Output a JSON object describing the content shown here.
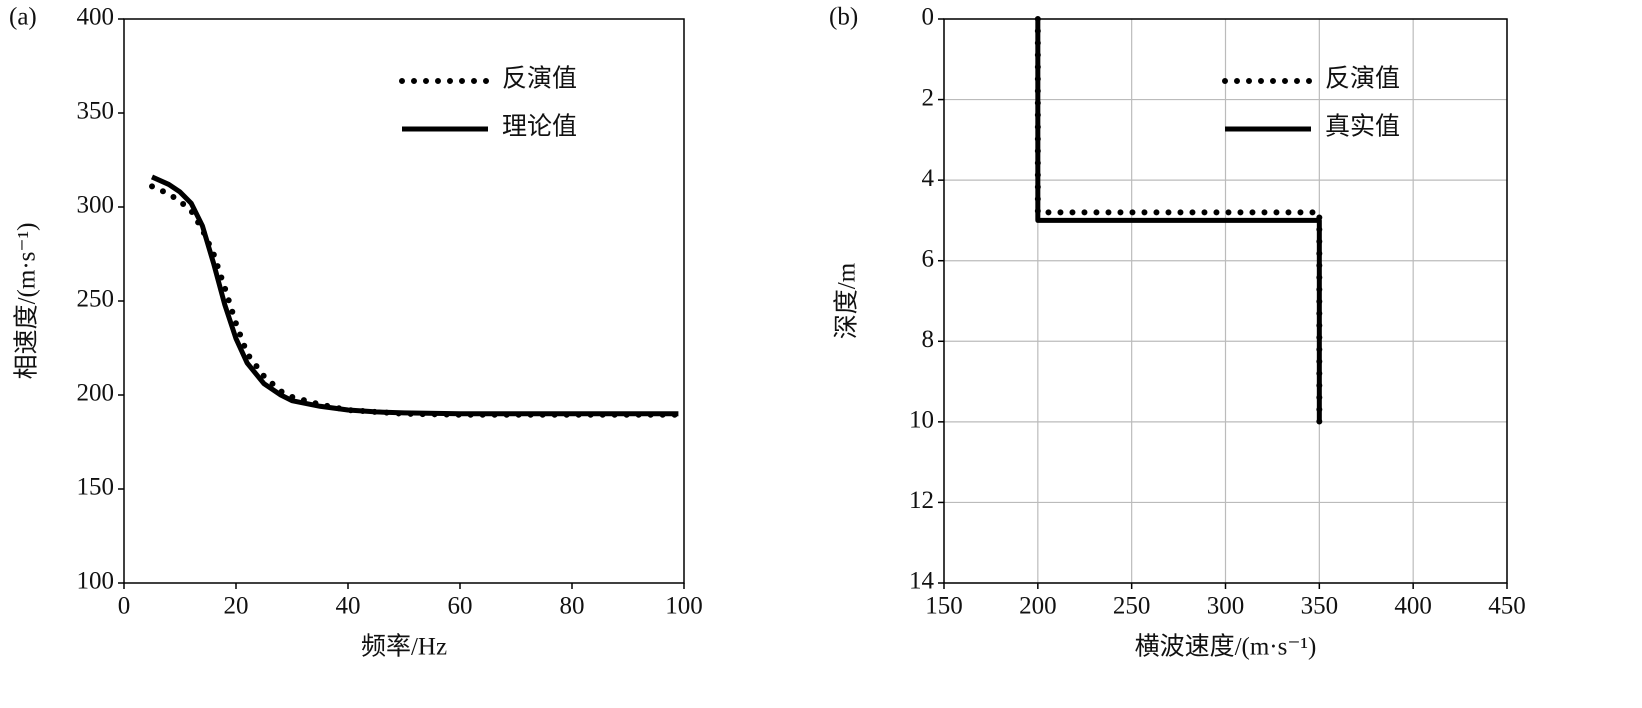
{
  "chart_data": [
    {
      "type": "line",
      "panel_label": "(a)",
      "xlabel": "频率/Hz",
      "ylabel": "相速度/(m·s⁻¹)",
      "x": [
        5,
        8,
        10,
        12,
        14,
        16,
        18,
        20,
        22,
        25,
        28,
        30,
        35,
        40,
        45,
        50,
        60,
        70,
        80,
        90,
        99
      ],
      "series": [
        {
          "name": "反演值",
          "color": "#000000",
          "style": "dotted",
          "values": [
            311,
            307,
            303,
            298,
            288,
            275,
            257,
            238,
            222,
            210,
            202,
            199,
            195,
            192,
            191,
            190,
            189.5,
            189.5,
            189.5,
            189.5,
            189.5
          ]
        },
        {
          "name": "理论值",
          "color": "#000000",
          "style": "solid",
          "values": [
            316,
            312,
            308,
            302,
            290,
            270,
            248,
            230,
            217,
            206,
            200,
            197,
            194,
            192,
            191,
            190.5,
            190,
            190,
            190,
            190,
            190
          ]
        }
      ],
      "xlim": [
        0,
        100
      ],
      "xticks": [
        0,
        20,
        40,
        60,
        80,
        100
      ],
      "ylim": [
        100,
        400
      ],
      "yticks": [
        100,
        150,
        200,
        250,
        300,
        350,
        400
      ],
      "grid": false,
      "y_inverted": false,
      "legend": "upper right"
    },
    {
      "type": "line",
      "panel_label": "(b)",
      "xlabel": "横波速度/(m·s⁻¹)",
      "ylabel": "深度/m",
      "x": [
        200,
        200,
        350,
        350
      ],
      "series": [
        {
          "name": "反演值",
          "color": "#000000",
          "style": "dotted",
          "values": [
            0,
            4.8,
            4.8,
            10
          ]
        },
        {
          "name": "真实值",
          "color": "#000000",
          "style": "solid",
          "values": [
            0,
            5,
            5,
            10
          ]
        }
      ],
      "xlim": [
        150,
        450
      ],
      "xticks": [
        150,
        200,
        250,
        300,
        350,
        400,
        450
      ],
      "ylim": [
        0,
        14
      ],
      "yticks": [
        0,
        2,
        4,
        6,
        8,
        10,
        12,
        14
      ],
      "grid": true,
      "y_inverted": true,
      "legend": "upper right"
    }
  ]
}
